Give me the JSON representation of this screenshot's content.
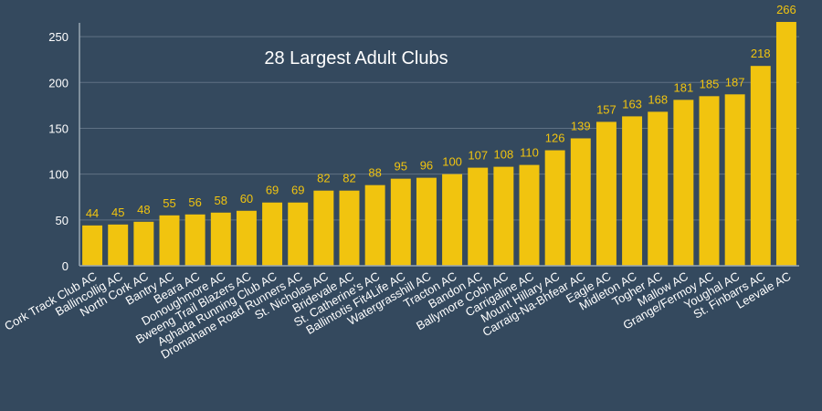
{
  "chart_data": {
    "type": "bar",
    "title": "28 Largest Adult Clubs",
    "xlabel": "",
    "ylabel": "",
    "ylim": [
      0,
      270
    ],
    "yticks": [
      0,
      50,
      100,
      150,
      200,
      250
    ],
    "grid": true,
    "categories": [
      "Cork Track Club AC",
      "Ballincollig AC",
      "North Cork AC",
      "Bantry AC",
      "Beara AC",
      "Donoughmore AC",
      "Bweeng Trail Blazers AC",
      "Aghada Running Club AC",
      "Dromahane Road Runners AC",
      "St. Nicholas AC",
      "Bridevale AC",
      "St. Catherine's AC",
      "Ballintotis Fit4Life AC",
      "Watergrasshill AC",
      "Tracton AC",
      "Bandon AC",
      "Ballymore Cobh AC",
      "Carrigaline AC",
      "Mount Hillary AC",
      "Carraig-Na-Bhfear AC",
      "Eagle AC",
      "Midleton AC",
      "Togher AC",
      "Mallow AC",
      "Grange/Fermoy AC",
      "Youghal AC",
      "St. Finbarrs AC",
      "Leevale AC"
    ],
    "values": [
      44,
      45,
      48,
      55,
      56,
      58,
      60,
      69,
      69,
      82,
      82,
      88,
      95,
      96,
      100,
      107,
      108,
      110,
      126,
      139,
      157,
      163,
      168,
      181,
      185,
      187,
      218,
      266
    ],
    "colors": {
      "background": "#34495e",
      "bar": "#f1c40f",
      "text": "#ffffff",
      "grid": "#5f7184"
    }
  }
}
